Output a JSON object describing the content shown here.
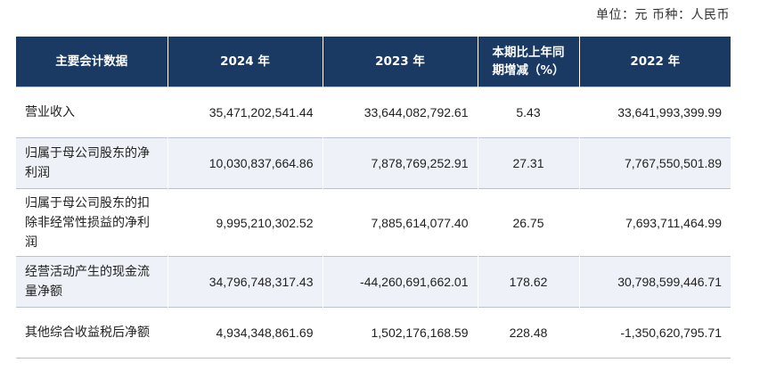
{
  "unit_note": "单位：元  币种：人民币",
  "table": {
    "headers": {
      "item": "主要会计数据",
      "y2024": "2024 年",
      "y2023": "2023 年",
      "change": "本期比上年同期增减（%）",
      "y2022": "2022 年"
    },
    "rows": [
      {
        "label": "营业收入",
        "y2024": "35,471,202,541.44",
        "y2023": "33,644,082,792.61",
        "change": "5.43",
        "y2022": "33,641,993,399.99"
      },
      {
        "label": "归属于母公司股东的净利润",
        "y2024": "10,030,837,664.86",
        "y2023": "7,878,769,252.91",
        "change": "27.31",
        "y2022": "7,767,550,501.89"
      },
      {
        "label": "归属于母公司股东的扣除非经常性损益的净利润",
        "y2024": "9,995,210,302.52",
        "y2023": "7,885,614,077.40",
        "change": "26.75",
        "y2022": "7,693,711,464.99"
      },
      {
        "label": "经营活动产生的现金流量净额",
        "y2024": "34,796,748,317.43",
        "y2023": "-44,260,691,662.01",
        "change": "178.62",
        "y2022": "30,798,599,446.71"
      },
      {
        "label": "其他综合收益税后净额",
        "y2024": "4,934,348,861.69",
        "y2023": "1,502,176,168.59",
        "change": "228.48",
        "y2022": "-1,350,620,795.71"
      }
    ]
  }
}
